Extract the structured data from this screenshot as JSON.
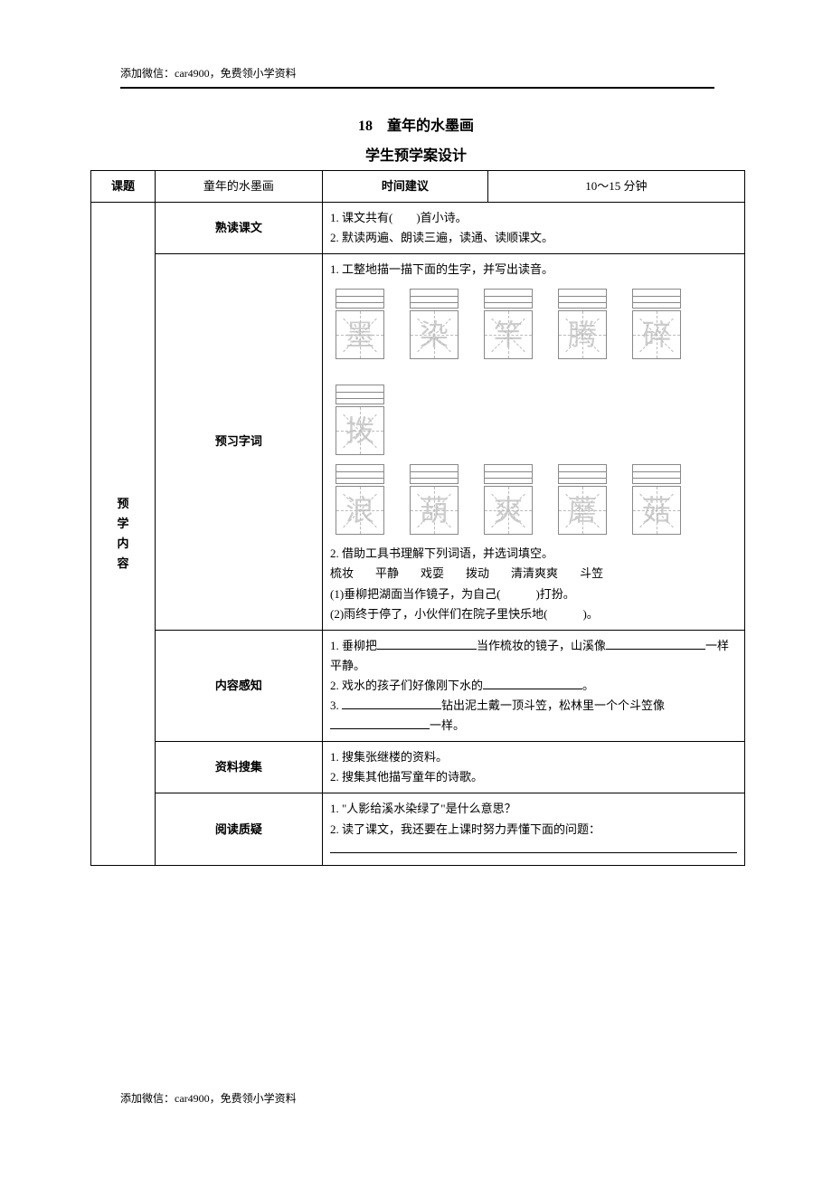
{
  "header": "添加微信：car4900，免费领小学资料",
  "footer": "添加微信：car4900，免费领小学资料",
  "title_line1": "18　童年的水墨画",
  "title_line2": "学生预学案设计",
  "row1": {
    "c1": "课题",
    "c2": "童年的水墨画",
    "c3": "时间建议",
    "c4": "10～15 分钟"
  },
  "sidebar_label": "预\n学\n内\n容",
  "read": {
    "label": "熟读课文",
    "line1": "1. 课文共有(　　)首小诗。",
    "line2": "2. 默读两遍、朗读三遍，读通、读顺课文。"
  },
  "chars": {
    "label": "预习字词",
    "intro": "1. 工整地描一描下面的生字，并写出读音。",
    "row1_chars": [
      "墨",
      "染",
      "竿",
      "腾",
      "碎",
      "拨"
    ],
    "row2_chars": [
      "浪",
      "葫",
      "爽",
      "蘑",
      "菇"
    ],
    "section2_intro": "2. 借助工具书理解下列词语，并选词填空。",
    "words": [
      "梳妆",
      "平静",
      "戏耍",
      "拨动",
      "清清爽爽",
      "斗笠"
    ],
    "q1": "(1)垂柳把湖面当作镜子，为自己(　　　)打扮。",
    "q2": "(2)雨终于停了，小伙伴们在院子里快乐地(　　　)。"
  },
  "content_sense": {
    "label": "内容感知",
    "line1_a": "1. 垂柳把",
    "line1_b": "当作梳妆的镜子，山溪像",
    "line1_c": "一样平静。",
    "line2_a": "2. 戏水的孩子们好像刚下水的",
    "line2_b": "。",
    "line3_a": "3. ",
    "line3_b": "钻出泥土戴一顶斗笠，松林里一个个斗笠像",
    "line3_c": "一样。"
  },
  "collect": {
    "label": "资料搜集",
    "line1": "1. 搜集张继楼的资料。",
    "line2": "2. 搜集其他描写童年的诗歌。"
  },
  "question": {
    "label": "阅读质疑",
    "line1": "1. \"人影给溪水染绿了\"是什么意思？",
    "line2": "2. 读了课文，我还要在上课时努力弄懂下面的问题："
  }
}
